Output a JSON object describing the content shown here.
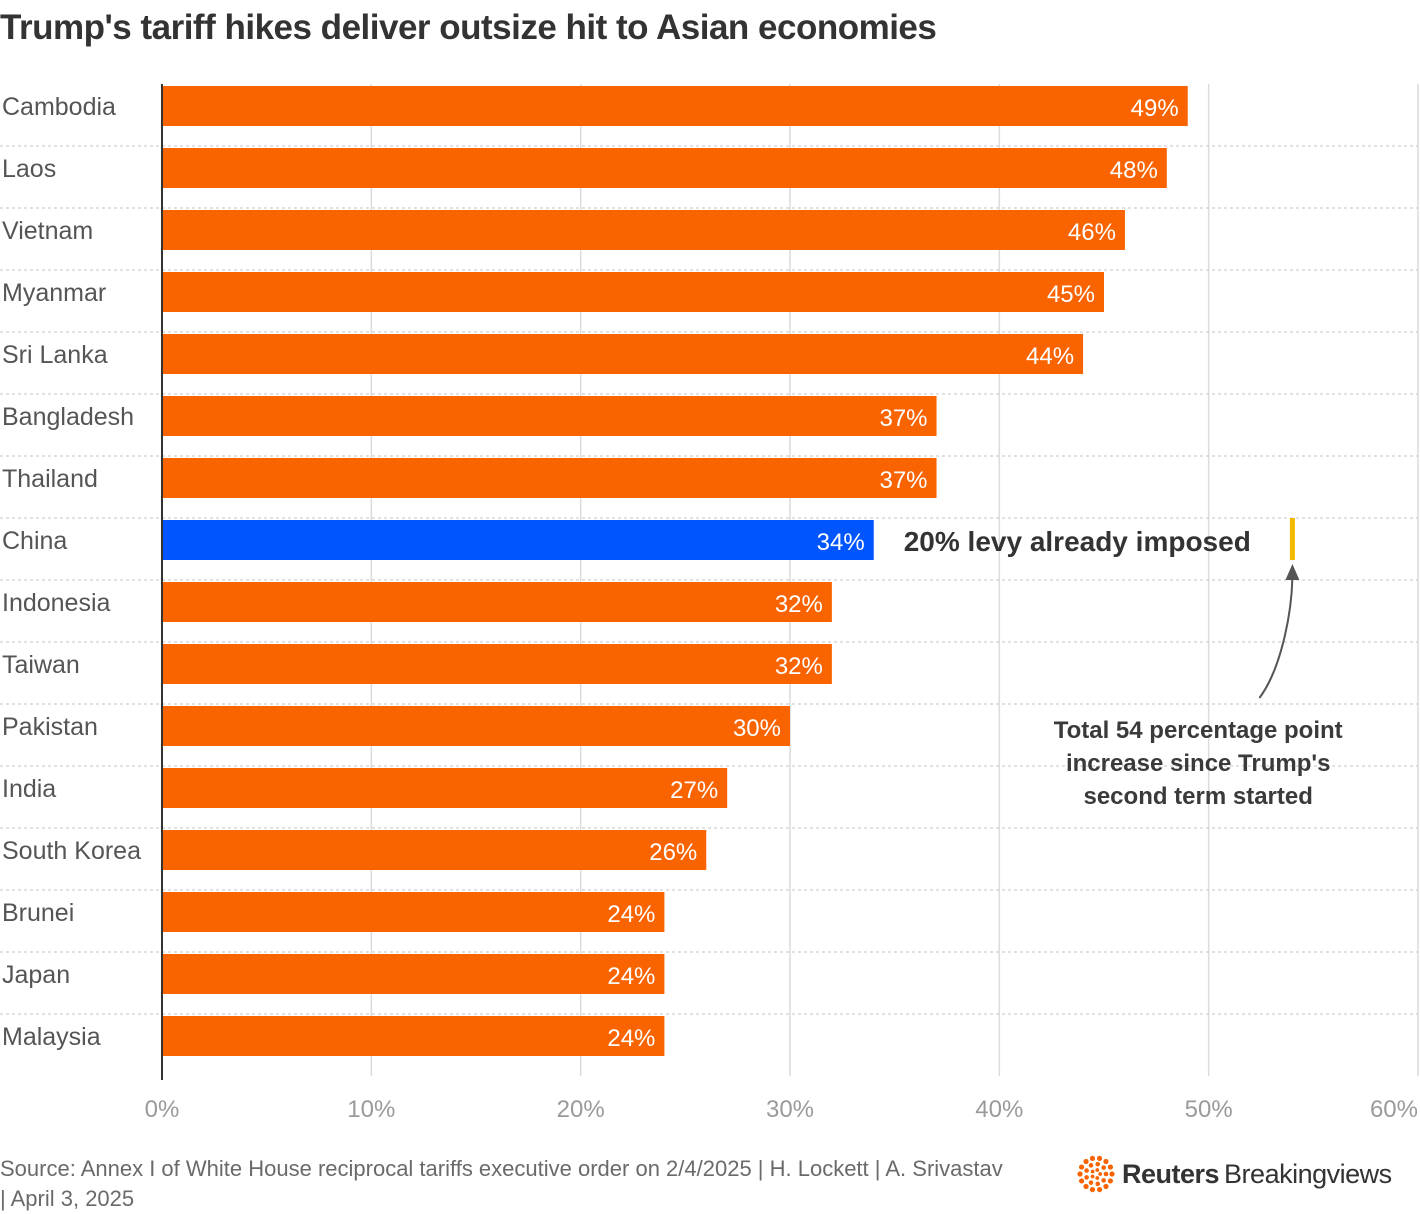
{
  "chart_data": {
    "type": "bar",
    "orientation": "horizontal",
    "title": "Trump's tariff hikes deliver outsize hit to Asian economies",
    "categories": [
      "Cambodia",
      "Laos",
      "Vietnam",
      "Myanmar",
      "Sri Lanka",
      "Bangladesh",
      "Thailand",
      "China",
      "Indonesia",
      "Taiwan",
      "Pakistan",
      "India",
      "South Korea",
      "Brunei",
      "Japan",
      "Malaysia"
    ],
    "values": [
      49,
      48,
      46,
      45,
      44,
      37,
      37,
      34,
      32,
      32,
      30,
      27,
      26,
      24,
      24,
      24
    ],
    "value_labels": [
      "49%",
      "48%",
      "46%",
      "45%",
      "44%",
      "37%",
      "37%",
      "34%",
      "32%",
      "32%",
      "30%",
      "27%",
      "26%",
      "24%",
      "24%",
      "24%"
    ],
    "highlight": "China",
    "xlim": [
      0,
      60
    ],
    "ticks": [
      0,
      10,
      20,
      30,
      40,
      50,
      60
    ],
    "tick_labels": [
      "0%",
      "10%",
      "20%",
      "30%",
      "40%",
      "50%",
      "60%"
    ],
    "grid": true,
    "colors": {
      "bar": "#f96300",
      "highlight": "#0055ff",
      "marker": "#f5b800",
      "arrow": "#555555"
    },
    "annotations": {
      "levy_label": "20% levy already imposed",
      "levy_value": 20,
      "levy_start": 34,
      "note_lines": [
        "Total 54 percentage point",
        "increase since Trump's",
        "second term started"
      ]
    }
  },
  "source": "Source: Annex I of White House reciprocal tariffs executive order on 2/4/2025 | H. Lockett | A. Srivastav | April 3, 2025",
  "logo": {
    "brand": "Reuters",
    "sub": "Breakingviews",
    "icon": "reuters-dots-icon"
  }
}
